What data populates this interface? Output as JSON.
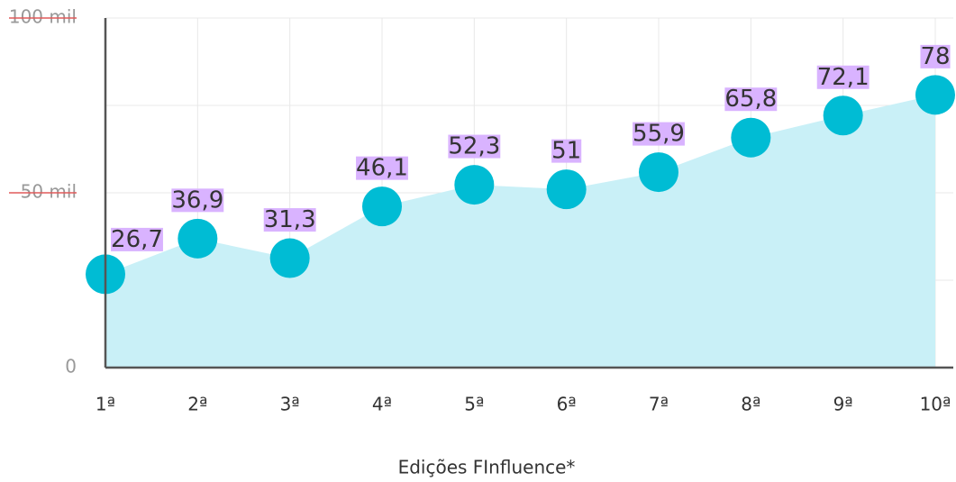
{
  "chart_data": {
    "type": "area",
    "x_label": "Edições FInfluence*",
    "categories": [
      "1ª",
      "2ª",
      "3ª",
      "4ª",
      "5ª",
      "6ª",
      "7ª",
      "8ª",
      "9ª",
      "10ª"
    ],
    "series": [
      {
        "name": null,
        "color": "#00bcd4",
        "fill": "#c9f0f7",
        "values": [
          26.7,
          36.9,
          31.3,
          46.1,
          52.3,
          51,
          55.9,
          65.8,
          72.1,
          78
        ],
        "value_labels": [
          "26,7",
          "36,9",
          "31,3",
          "46,1",
          "52,3",
          "51",
          "55,9",
          "65,8",
          "72,1",
          "78"
        ]
      }
    ],
    "label_color": "#d9b3ff",
    "ylim": [
      0,
      100
    ],
    "yticks": [
      0,
      {
        "value": 50,
        "label": "50 mil"
      },
      {
        "value": 100,
        "label": "100 mil"
      }
    ],
    "minor_yticks": [
      25,
      75
    ],
    "grid": true
  }
}
